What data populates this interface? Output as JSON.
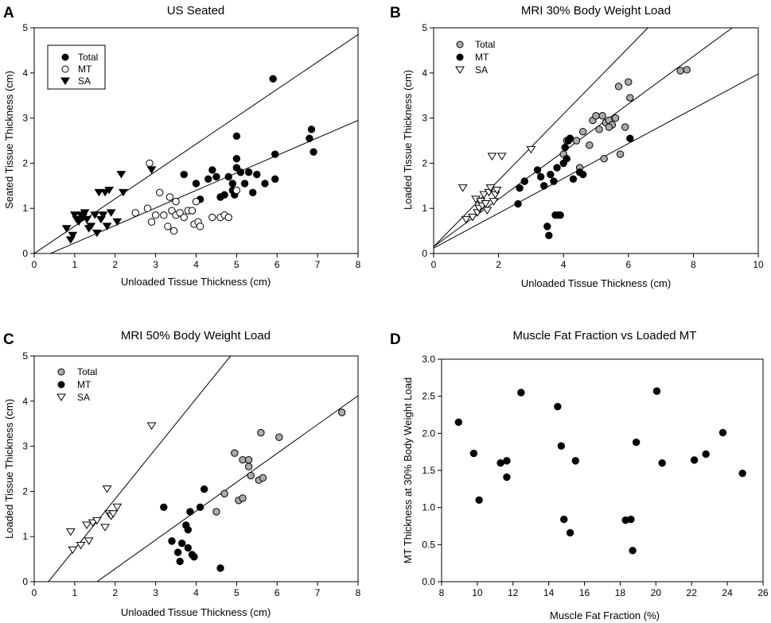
{
  "chart_data": [
    {
      "panel": "A",
      "type": "scatter",
      "title": "US Seated",
      "xlabel": "Unloaded Tissue Thickness (cm)",
      "ylabel": "Seated Tissue Thickness (cm)",
      "xlim": [
        0,
        8
      ],
      "ylim": [
        0,
        5
      ],
      "xticks": [
        "0",
        "1",
        "2",
        "3",
        "4",
        "5",
        "6",
        "7",
        "8"
      ],
      "yticks": [
        "0",
        "1",
        "2",
        "3",
        "4",
        "5"
      ],
      "legend": "top-left",
      "series": [
        {
          "name": "Total",
          "marker": "circle",
          "fill": "#000000",
          "points": [
            [
              3.7,
              1.75
            ],
            [
              4.0,
              1.55
            ],
            [
              4.1,
              1.2
            ],
            [
              4.3,
              1.65
            ],
            [
              4.4,
              1.85
            ],
            [
              4.5,
              1.7
            ],
            [
              4.6,
              1.25
            ],
            [
              4.7,
              1.3
            ],
            [
              4.8,
              1.7
            ],
            [
              4.9,
              1.4
            ],
            [
              4.9,
              1.55
            ],
            [
              4.95,
              1.3
            ],
            [
              5.0,
              1.9
            ],
            [
              5.0,
              2.1
            ],
            [
              5.0,
              2.6
            ],
            [
              5.1,
              1.8
            ],
            [
              5.2,
              1.55
            ],
            [
              5.3,
              1.8
            ],
            [
              5.4,
              1.35
            ],
            [
              5.5,
              1.75
            ],
            [
              5.7,
              1.55
            ],
            [
              5.9,
              3.87
            ],
            [
              5.95,
              2.2
            ],
            [
              5.95,
              1.65
            ],
            [
              6.8,
              2.55
            ],
            [
              6.85,
              2.75
            ],
            [
              6.9,
              2.25
            ]
          ]
        },
        {
          "name": "MT",
          "marker": "circle",
          "fill": "#ffffff",
          "points": [
            [
              2.5,
              0.9
            ],
            [
              2.8,
              1.0
            ],
            [
              2.85,
              2.0
            ],
            [
              2.9,
              0.7
            ],
            [
              3.0,
              0.85
            ],
            [
              3.1,
              1.35
            ],
            [
              3.2,
              0.85
            ],
            [
              3.3,
              0.6
            ],
            [
              3.35,
              1.25
            ],
            [
              3.4,
              0.95
            ],
            [
              3.45,
              0.5
            ],
            [
              3.5,
              1.15
            ],
            [
              3.5,
              0.85
            ],
            [
              3.6,
              0.9
            ],
            [
              3.7,
              0.8
            ],
            [
              3.8,
              0.95
            ],
            [
              3.9,
              0.95
            ],
            [
              3.95,
              0.65
            ],
            [
              4.0,
              1.15
            ],
            [
              4.05,
              0.7
            ],
            [
              4.1,
              0.6
            ],
            [
              4.4,
              0.8
            ],
            [
              4.6,
              0.8
            ],
            [
              4.7,
              0.85
            ],
            [
              4.8,
              0.8
            ],
            [
              5.0,
              1.4
            ]
          ]
        },
        {
          "name": "SA",
          "marker": "triangle-down",
          "fill": "#000000",
          "points": [
            [
              0.8,
              0.55
            ],
            [
              0.9,
              0.3
            ],
            [
              0.95,
              0.4
            ],
            [
              1.0,
              0.85
            ],
            [
              1.05,
              0.75
            ],
            [
              1.1,
              0.7
            ],
            [
              1.15,
              0.85
            ],
            [
              1.2,
              0.8
            ],
            [
              1.25,
              0.9
            ],
            [
              1.3,
              0.75
            ],
            [
              1.35,
              0.55
            ],
            [
              1.4,
              0.6
            ],
            [
              1.5,
              0.85
            ],
            [
              1.55,
              0.45
            ],
            [
              1.6,
              1.35
            ],
            [
              1.65,
              0.75
            ],
            [
              1.7,
              0.85
            ],
            [
              1.75,
              1.35
            ],
            [
              1.8,
              0.6
            ],
            [
              1.85,
              1.4
            ],
            [
              1.9,
              0.9
            ],
            [
              2.05,
              0.7
            ],
            [
              2.15,
              1.75
            ],
            [
              2.2,
              1.35
            ],
            [
              2.9,
              1.85
            ]
          ]
        }
      ],
      "lines": [
        [
          [
            0,
            0
          ],
          [
            8,
            4.85
          ]
        ],
        [
          [
            0.4,
            0
          ],
          [
            8,
            2.95
          ]
        ]
      ]
    },
    {
      "panel": "B",
      "type": "scatter",
      "title": "MRI 30% Body Weight Load",
      "xlabel": "Unloaded Tissue Thickness (cm)",
      "ylabel": "Loaded Tissue Thickness (cm)",
      "xlim": [
        0,
        10
      ],
      "ylim": [
        0,
        5
      ],
      "xticks": [
        "0",
        "2",
        "4",
        "6",
        "8",
        "10"
      ],
      "yticks": [
        "0",
        "1",
        "2",
        "3",
        "4",
        "5"
      ],
      "legend": "top-left",
      "series": [
        {
          "name": "Total",
          "marker": "circle",
          "fill": "#aaaaaa",
          "points": [
            [
              4.0,
              2.2
            ],
            [
              4.1,
              2.5
            ],
            [
              4.2,
              2.55
            ],
            [
              4.4,
              2.5
            ],
            [
              4.5,
              1.9
            ],
            [
              4.6,
              2.7
            ],
            [
              4.8,
              2.4
            ],
            [
              4.9,
              2.95
            ],
            [
              5.0,
              3.05
            ],
            [
              5.1,
              2.75
            ],
            [
              5.2,
              3.05
            ],
            [
              5.25,
              2.1
            ],
            [
              5.3,
              2.9
            ],
            [
              5.4,
              2.95
            ],
            [
              5.5,
              2.85
            ],
            [
              5.6,
              3.0
            ],
            [
              5.7,
              3.7
            ],
            [
              5.75,
              2.2
            ],
            [
              5.9,
              2.8
            ],
            [
              6.0,
              3.8
            ],
            [
              6.05,
              3.45
            ],
            [
              5.4,
              2.8
            ],
            [
              7.6,
              4.05
            ],
            [
              7.8,
              4.07
            ]
          ]
        },
        {
          "name": "MT",
          "marker": "circle",
          "fill": "#000000",
          "points": [
            [
              2.6,
              1.1
            ],
            [
              2.65,
              1.45
            ],
            [
              2.8,
              1.6
            ],
            [
              3.2,
              1.85
            ],
            [
              3.3,
              1.7
            ],
            [
              3.4,
              1.5
            ],
            [
              3.5,
              0.6
            ],
            [
              3.55,
              0.4
            ],
            [
              3.6,
              1.75
            ],
            [
              3.7,
              1.6
            ],
            [
              3.75,
              0.85
            ],
            [
              3.8,
              1.9
            ],
            [
              3.85,
              0.85
            ],
            [
              3.9,
              0.85
            ],
            [
              4.0,
              2.0
            ],
            [
              4.05,
              2.35
            ],
            [
              4.1,
              2.1
            ],
            [
              4.15,
              2.5
            ],
            [
              4.2,
              2.55
            ],
            [
              4.3,
              1.65
            ],
            [
              4.5,
              1.8
            ],
            [
              4.6,
              1.75
            ],
            [
              6.05,
              2.55
            ]
          ]
        },
        {
          "name": "SA",
          "marker": "triangle-down",
          "fill": "#ffffff",
          "points": [
            [
              0.9,
              1.45
            ],
            [
              1.0,
              0.75
            ],
            [
              1.2,
              0.8
            ],
            [
              1.3,
              1.2
            ],
            [
              1.35,
              0.9
            ],
            [
              1.4,
              1.0
            ],
            [
              1.45,
              1.15
            ],
            [
              1.5,
              1.05
            ],
            [
              1.55,
              1.3
            ],
            [
              1.6,
              1.1
            ],
            [
              1.65,
              0.95
            ],
            [
              1.7,
              1.35
            ],
            [
              1.75,
              1.45
            ],
            [
              1.8,
              2.15
            ],
            [
              1.85,
              1.15
            ],
            [
              1.9,
              1.3
            ],
            [
              1.95,
              1.4
            ],
            [
              2.1,
              2.15
            ],
            [
              3.0,
              2.3
            ]
          ]
        }
      ],
      "lines": [
        [
          [
            0,
            0.15
          ],
          [
            6.6,
            5.0
          ]
        ],
        [
          [
            0,
            0.15
          ],
          [
            9.2,
            5.0
          ]
        ],
        [
          [
            0,
            0.12
          ],
          [
            10,
            3.98
          ]
        ]
      ]
    },
    {
      "panel": "C",
      "type": "scatter",
      "title": "MRI 50% Body Weight Load",
      "xlabel": "Unloaded Tissue Thickness (cm)",
      "ylabel": "Loaded Tissue Thickness (cm)",
      "xlim": [
        0,
        8
      ],
      "ylim": [
        0,
        5
      ],
      "xticks": [
        "0",
        "1",
        "2",
        "3",
        "4",
        "5",
        "6",
        "7",
        "8"
      ],
      "yticks": [
        "0",
        "1",
        "2",
        "3",
        "4",
        "5"
      ],
      "legend": "top-left",
      "series": [
        {
          "name": "Total",
          "marker": "circle",
          "fill": "#aaaaaa",
          "points": [
            [
              4.5,
              1.55
            ],
            [
              4.7,
              1.95
            ],
            [
              4.95,
              2.85
            ],
            [
              5.05,
              1.8
            ],
            [
              5.15,
              1.85
            ],
            [
              5.15,
              2.7
            ],
            [
              5.3,
              2.55
            ],
            [
              5.3,
              2.7
            ],
            [
              5.35,
              2.35
            ],
            [
              5.55,
              2.25
            ],
            [
              5.6,
              3.3
            ],
            [
              5.65,
              2.3
            ],
            [
              6.05,
              3.2
            ],
            [
              7.6,
              3.75
            ]
          ]
        },
        {
          "name": "MT",
          "marker": "circle",
          "fill": "#000000",
          "points": [
            [
              3.2,
              1.65
            ],
            [
              3.4,
              0.9
            ],
            [
              3.55,
              0.65
            ],
            [
              3.6,
              0.45
            ],
            [
              3.65,
              0.85
            ],
            [
              3.75,
              1.25
            ],
            [
              3.8,
              1.15
            ],
            [
              3.8,
              0.75
            ],
            [
              3.85,
              1.55
            ],
            [
              3.9,
              0.6
            ],
            [
              3.95,
              0.55
            ],
            [
              4.1,
              1.65
            ],
            [
              4.2,
              2.05
            ],
            [
              4.6,
              0.3
            ]
          ]
        },
        {
          "name": "SA",
          "marker": "triangle-down",
          "fill": "#ffffff",
          "points": [
            [
              0.9,
              1.1
            ],
            [
              0.95,
              0.7
            ],
            [
              1.15,
              0.8
            ],
            [
              1.3,
              1.25
            ],
            [
              1.35,
              0.9
            ],
            [
              1.45,
              1.3
            ],
            [
              1.55,
              1.35
            ],
            [
              1.75,
              1.2
            ],
            [
              1.8,
              2.05
            ],
            [
              1.85,
              1.5
            ],
            [
              1.9,
              1.45
            ],
            [
              1.95,
              1.5
            ],
            [
              2.05,
              1.65
            ],
            [
              2.9,
              3.45
            ]
          ]
        }
      ],
      "lines": [
        [
          [
            0.35,
            0
          ],
          [
            4.85,
            5.0
          ]
        ],
        [
          [
            1.55,
            0
          ],
          [
            8,
            4.12
          ]
        ]
      ]
    },
    {
      "panel": "D",
      "type": "scatter",
      "title": "Muscle Fat Fraction vs Loaded MT",
      "xlabel": "Muscle Fat Fraction (%)",
      "ylabel": "MT Thickness at 30% Body Weight Load",
      "xlim": [
        8,
        26
      ],
      "ylim": [
        0,
        3
      ],
      "xticks": [
        "8",
        "10",
        "12",
        "14",
        "16",
        "18",
        "20",
        "22",
        "24",
        "26"
      ],
      "yticks": [
        "0.0",
        "0.5",
        "1.0",
        "1.5",
        "2.0",
        "2.5",
        "3.0"
      ],
      "series": [
        {
          "name": "MT",
          "marker": "circle",
          "fill": "#000000",
          "points": [
            [
              8.95,
              2.15
            ],
            [
              9.8,
              1.73
            ],
            [
              10.1,
              1.1
            ],
            [
              11.3,
              1.6
            ],
            [
              11.65,
              1.63
            ],
            [
              11.65,
              1.41
            ],
            [
              12.45,
              2.55
            ],
            [
              14.5,
              2.36
            ],
            [
              14.7,
              1.83
            ],
            [
              14.85,
              0.84
            ],
            [
              15.2,
              0.66
            ],
            [
              15.5,
              1.63
            ],
            [
              18.3,
              0.83
            ],
            [
              18.6,
              0.84
            ],
            [
              18.7,
              0.42
            ],
            [
              18.9,
              1.88
            ],
            [
              20.05,
              2.57
            ],
            [
              20.35,
              1.6
            ],
            [
              22.15,
              1.64
            ],
            [
              22.8,
              1.72
            ],
            [
              23.75,
              2.01
            ],
            [
              24.85,
              1.46
            ]
          ]
        }
      ]
    }
  ],
  "panel_labels": [
    "A",
    "B",
    "C",
    "D"
  ]
}
